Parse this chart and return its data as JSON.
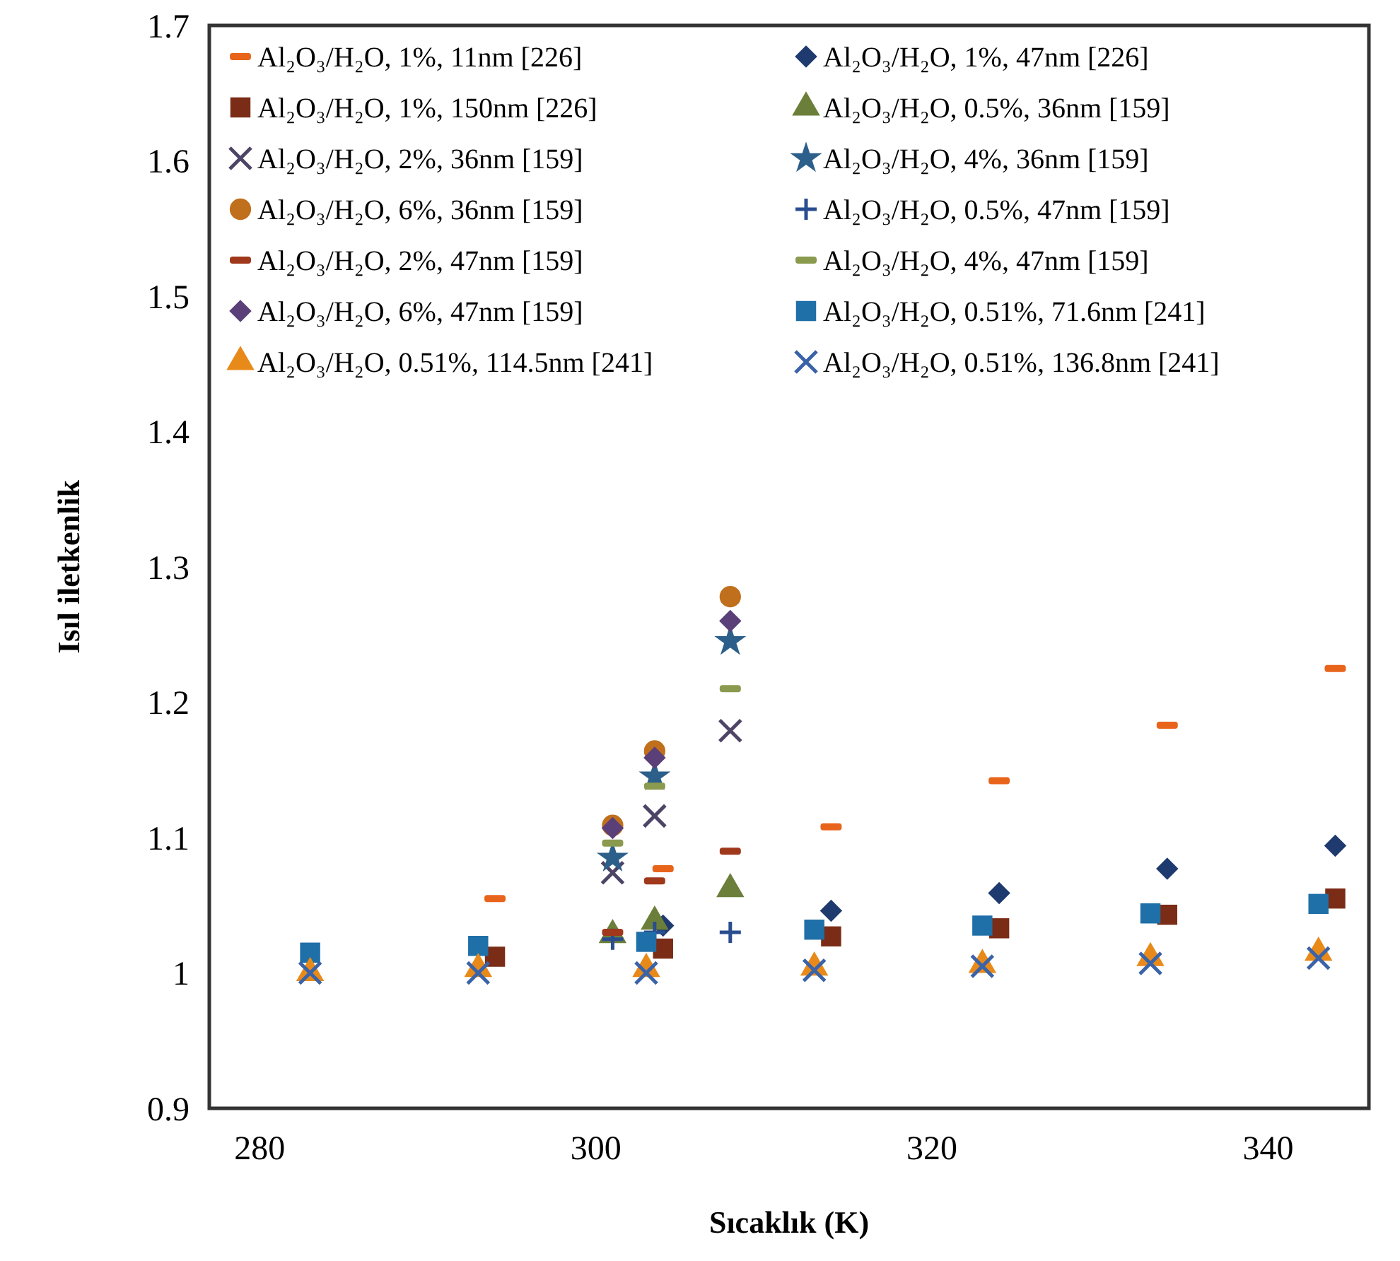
{
  "chart_data": {
    "type": "scatter",
    "xlabel": "Sıcaklık (K)",
    "ylabel": "Isıl iletkenlik",
    "xlim": [
      277,
      346
    ],
    "xticks": [
      280,
      300,
      320,
      340
    ],
    "ylim": [
      0.9,
      1.7
    ],
    "yticks": [
      0.9,
      1,
      1.1,
      1.2,
      1.3,
      1.4,
      1.5,
      1.6,
      1.7
    ],
    "grid": false,
    "legend": "top",
    "series": [
      {
        "name": "Al₂O₃/H₂O, 1%, 11nm [226]",
        "color": "#e8641b",
        "x": [
          294,
          304,
          314,
          324,
          334,
          344
        ],
        "values": [
          1.055,
          1.077,
          1.108,
          1.142,
          1.183,
          1.225
        ]
      },
      {
        "name": "Al₂O₃/H₂O, 1%, 47nm [226]",
        "color": "#1f3a6e",
        "marker": "diamond",
        "x": [
          304,
          314,
          324,
          334,
          344
        ],
        "values": [
          1.035,
          1.046,
          1.059,
          1.077,
          1.094
        ]
      },
      {
        "name": "Al₂O₃/H₂O, 1%, 150nm [226]",
        "color": "#7b2c16",
        "marker": "square",
        "x": [
          294,
          304,
          314,
          324,
          334,
          344
        ],
        "values": [
          1.012,
          1.018,
          1.027,
          1.033,
          1.043,
          1.055
        ]
      },
      {
        "name": "Al₂O₃/H₂O, 0.5%, 36nm [159]",
        "color": "#6b7f3a",
        "marker": "triangle",
        "x": [
          301,
          303.5,
          308
        ],
        "values": [
          1.028,
          1.038,
          1.062
        ]
      },
      {
        "name": "Al₂O₃/H₂O, 2%, 36nm [159]",
        "color": "#4e4466",
        "marker": "cross",
        "x": [
          301,
          303.5,
          308
        ],
        "values": [
          1.074,
          1.116,
          1.179
        ]
      },
      {
        "name": "Al₂O₃/H₂O, 4%, 36nm [159]",
        "color": "#2c5f8a",
        "marker": "star",
        "x": [
          301,
          303.5,
          308
        ],
        "values": [
          1.085,
          1.145,
          1.245
        ]
      },
      {
        "name": "Al₂O₃/H₂O, 6%, 36nm [159]",
        "color": "#c0701c",
        "marker": "circle",
        "x": [
          301,
          303.5,
          308
        ],
        "values": [
          1.109,
          1.164,
          1.278
        ]
      },
      {
        "name": "Al₂O₃/H₂O, 0.5%, 47nm [159]",
        "color": "#2a4d8f",
        "marker": "plus",
        "x": [
          301,
          303.5,
          308
        ],
        "values": [
          1.025,
          1.03,
          1.03
        ]
      },
      {
        "name": "Al₂O₃/H₂O, 2%, 47nm [159]",
        "color": "#a0381c",
        "x": [
          301,
          303.5,
          308
        ],
        "values": [
          1.03,
          1.068,
          1.09
        ]
      },
      {
        "name": "Al₂O₃/H₂O, 4%, 47nm [159]",
        "color": "#8a9a4e",
        "x": [
          301,
          303.5,
          308
        ],
        "values": [
          1.096,
          1.138,
          1.21
        ]
      },
      {
        "name": "Al₂O₃/H₂O, 6%, 47nm [159]",
        "color": "#5a3f78",
        "marker": "diamond",
        "x": [
          301,
          303.5,
          308
        ],
        "values": [
          1.107,
          1.159,
          1.26
        ]
      },
      {
        "name": "Al₂O₃/H₂O, 0.51%, 71.6nm [241]",
        "color": "#1f6fa8",
        "marker": "square",
        "x": [
          283,
          293,
          303,
          313,
          323,
          333,
          343
        ],
        "values": [
          1.015,
          1.02,
          1.023,
          1.032,
          1.035,
          1.044,
          1.051
        ]
      },
      {
        "name": "Al₂O₃/H₂O, 0.51%, 114.5nm [241]",
        "color": "#e88a1a",
        "marker": "triangle",
        "x": [
          283,
          293,
          303,
          313,
          323,
          333,
          343
        ],
        "values": [
          1.0,
          1.003,
          1.003,
          1.004,
          1.006,
          1.011,
          1.015
        ]
      },
      {
        "name": "Al₂O₃/H₂O, 0.51%, 136.8nm [241]",
        "color": "#3a63a8",
        "marker": "cross",
        "x": [
          283,
          293,
          303,
          313,
          323,
          333,
          343
        ],
        "values": [
          1.0,
          1.0,
          1.0,
          1.002,
          1.005,
          1.007,
          1.011
        ]
      }
    ]
  }
}
